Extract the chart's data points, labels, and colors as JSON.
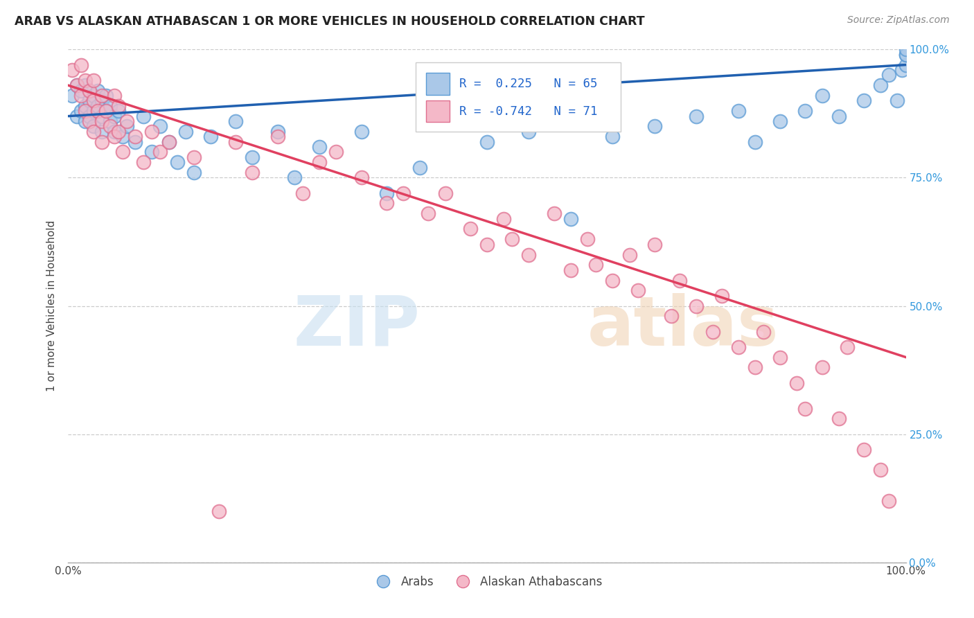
{
  "title": "ARAB VS ALASKAN ATHABASCAN 1 OR MORE VEHICLES IN HOUSEHOLD CORRELATION CHART",
  "source_text": "Source: ZipAtlas.com",
  "ylabel": "1 or more Vehicles in Household",
  "xlim": [
    0,
    1
  ],
  "ylim": [
    0,
    1
  ],
  "ytick_labels": [
    "0.0%",
    "25.0%",
    "50.0%",
    "75.0%",
    "100.0%"
  ],
  "ytick_positions": [
    0,
    0.25,
    0.5,
    0.75,
    1.0
  ],
  "arab_color": "#aac8e8",
  "arab_edge_color": "#5b9bd5",
  "athabascan_color": "#f4b8c8",
  "athabascan_edge_color": "#e07090",
  "arab_line_color": "#2060b0",
  "athabascan_line_color": "#e04060",
  "arab_R": 0.225,
  "arab_N": 65,
  "athabascan_R": -0.742,
  "athabascan_N": 71,
  "arab_x": [
    0.005,
    0.01,
    0.01,
    0.015,
    0.015,
    0.02,
    0.02,
    0.02,
    0.025,
    0.025,
    0.03,
    0.03,
    0.03,
    0.035,
    0.035,
    0.04,
    0.04,
    0.04,
    0.045,
    0.045,
    0.05,
    0.05,
    0.055,
    0.055,
    0.06,
    0.065,
    0.07,
    0.08,
    0.09,
    0.1,
    0.11,
    0.12,
    0.13,
    0.14,
    0.15,
    0.17,
    0.2,
    0.22,
    0.25,
    0.27,
    0.3,
    0.35,
    0.38,
    0.42,
    0.5,
    0.55,
    0.6,
    0.65,
    0.7,
    0.75,
    0.8,
    0.82,
    0.85,
    0.88,
    0.9,
    0.92,
    0.95,
    0.97,
    0.98,
    0.99,
    0.995,
    1.0,
    1.0,
    1.0,
    1.0
  ],
  "arab_y": [
    0.91,
    0.87,
    0.93,
    0.88,
    0.92,
    0.86,
    0.89,
    0.93,
    0.87,
    0.9,
    0.88,
    0.91,
    0.85,
    0.89,
    0.92,
    0.87,
    0.9,
    0.84,
    0.88,
    0.91,
    0.86,
    0.89,
    0.87,
    0.84,
    0.88,
    0.83,
    0.85,
    0.82,
    0.87,
    0.8,
    0.85,
    0.82,
    0.78,
    0.84,
    0.76,
    0.83,
    0.86,
    0.79,
    0.84,
    0.75,
    0.81,
    0.84,
    0.72,
    0.77,
    0.82,
    0.84,
    0.67,
    0.83,
    0.85,
    0.87,
    0.88,
    0.82,
    0.86,
    0.88,
    0.91,
    0.87,
    0.9,
    0.93,
    0.95,
    0.9,
    0.96,
    0.97,
    0.99,
    0.99,
    1.0
  ],
  "athabascan_x": [
    0.005,
    0.01,
    0.015,
    0.015,
    0.02,
    0.02,
    0.025,
    0.025,
    0.03,
    0.03,
    0.03,
    0.035,
    0.04,
    0.04,
    0.04,
    0.045,
    0.05,
    0.055,
    0.055,
    0.06,
    0.06,
    0.065,
    0.07,
    0.08,
    0.09,
    0.1,
    0.11,
    0.12,
    0.15,
    0.18,
    0.2,
    0.22,
    0.25,
    0.28,
    0.3,
    0.32,
    0.35,
    0.38,
    0.4,
    0.43,
    0.45,
    0.48,
    0.5,
    0.52,
    0.53,
    0.55,
    0.58,
    0.6,
    0.62,
    0.63,
    0.65,
    0.67,
    0.68,
    0.7,
    0.72,
    0.73,
    0.75,
    0.77,
    0.78,
    0.8,
    0.82,
    0.83,
    0.85,
    0.87,
    0.88,
    0.9,
    0.92,
    0.93,
    0.95,
    0.97,
    0.98
  ],
  "athabascan_y": [
    0.96,
    0.93,
    0.97,
    0.91,
    0.94,
    0.88,
    0.92,
    0.86,
    0.9,
    0.94,
    0.84,
    0.88,
    0.91,
    0.86,
    0.82,
    0.88,
    0.85,
    0.91,
    0.83,
    0.89,
    0.84,
    0.8,
    0.86,
    0.83,
    0.78,
    0.84,
    0.8,
    0.82,
    0.79,
    0.1,
    0.82,
    0.76,
    0.83,
    0.72,
    0.78,
    0.8,
    0.75,
    0.7,
    0.72,
    0.68,
    0.72,
    0.65,
    0.62,
    0.67,
    0.63,
    0.6,
    0.68,
    0.57,
    0.63,
    0.58,
    0.55,
    0.6,
    0.53,
    0.62,
    0.48,
    0.55,
    0.5,
    0.45,
    0.52,
    0.42,
    0.38,
    0.45,
    0.4,
    0.35,
    0.3,
    0.38,
    0.28,
    0.42,
    0.22,
    0.18,
    0.12
  ]
}
